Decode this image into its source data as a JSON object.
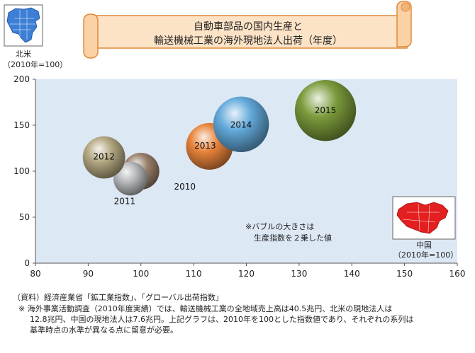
{
  "title": {
    "line1": "自動車部品の国内生産と",
    "line2": "輸送機械工業の海外現地法人出荷（年度）"
  },
  "north_america_map": {
    "region": "北米",
    "base": "（2010年=100）"
  },
  "china_map": {
    "region": "中国",
    "base": "（2010年=100）"
  },
  "bubble_note": {
    "line1": "※バブルの大きさは",
    "line2": "生産指数を２乗した値"
  },
  "source": {
    "line1": "（資料）経済産業省「鉱工業指数」、「グローバル出荷指数」",
    "line2": "※ 海外事業活動調査（2010年度実績）では、輸送機械工業の全地域売上高は40.5兆円、北米の現地法人は",
    "line3": "12.8兆円、中国の現地法人は7.6兆円。上記グラフは、2010年を100とした指数値であり、それぞれの系列は",
    "line4": "基準時点の水準が異なる点に留意が必要。"
  },
  "colors": {
    "title_banner": "#fde3c6",
    "title_border": "#e08a3a",
    "plot_bg": "#dde8f5",
    "map_sea": "#ffffff",
    "na_land": "#3d7fd6",
    "china_land": "#e41f1f"
  },
  "chart_data": {
    "type": "bubble",
    "xlim": [
      80,
      160
    ],
    "ylim": [
      0,
      200
    ],
    "x_ticks": [
      "80",
      "90",
      "100",
      "110",
      "120",
      "130",
      "140",
      "150",
      "160"
    ],
    "y_ticks": [
      "0",
      "50",
      "100",
      "150",
      "200"
    ],
    "grid": false,
    "points": [
      {
        "label": "2010",
        "x": 100,
        "y": 100,
        "color": "#9a7f6a"
      },
      {
        "label": "2011",
        "x": 98,
        "y": 92,
        "color": "#b6b8bb"
      },
      {
        "label": "2012",
        "x": 93,
        "y": 115,
        "color": "#b3a781"
      },
      {
        "label": "2013",
        "x": 113,
        "y": 127,
        "color": "#e9843c"
      },
      {
        "label": "2014",
        "x": 119,
        "y": 151,
        "color": "#63a9da"
      },
      {
        "label": "2015",
        "x": 135,
        "y": 166,
        "color": "#7b9a3b"
      }
    ]
  }
}
